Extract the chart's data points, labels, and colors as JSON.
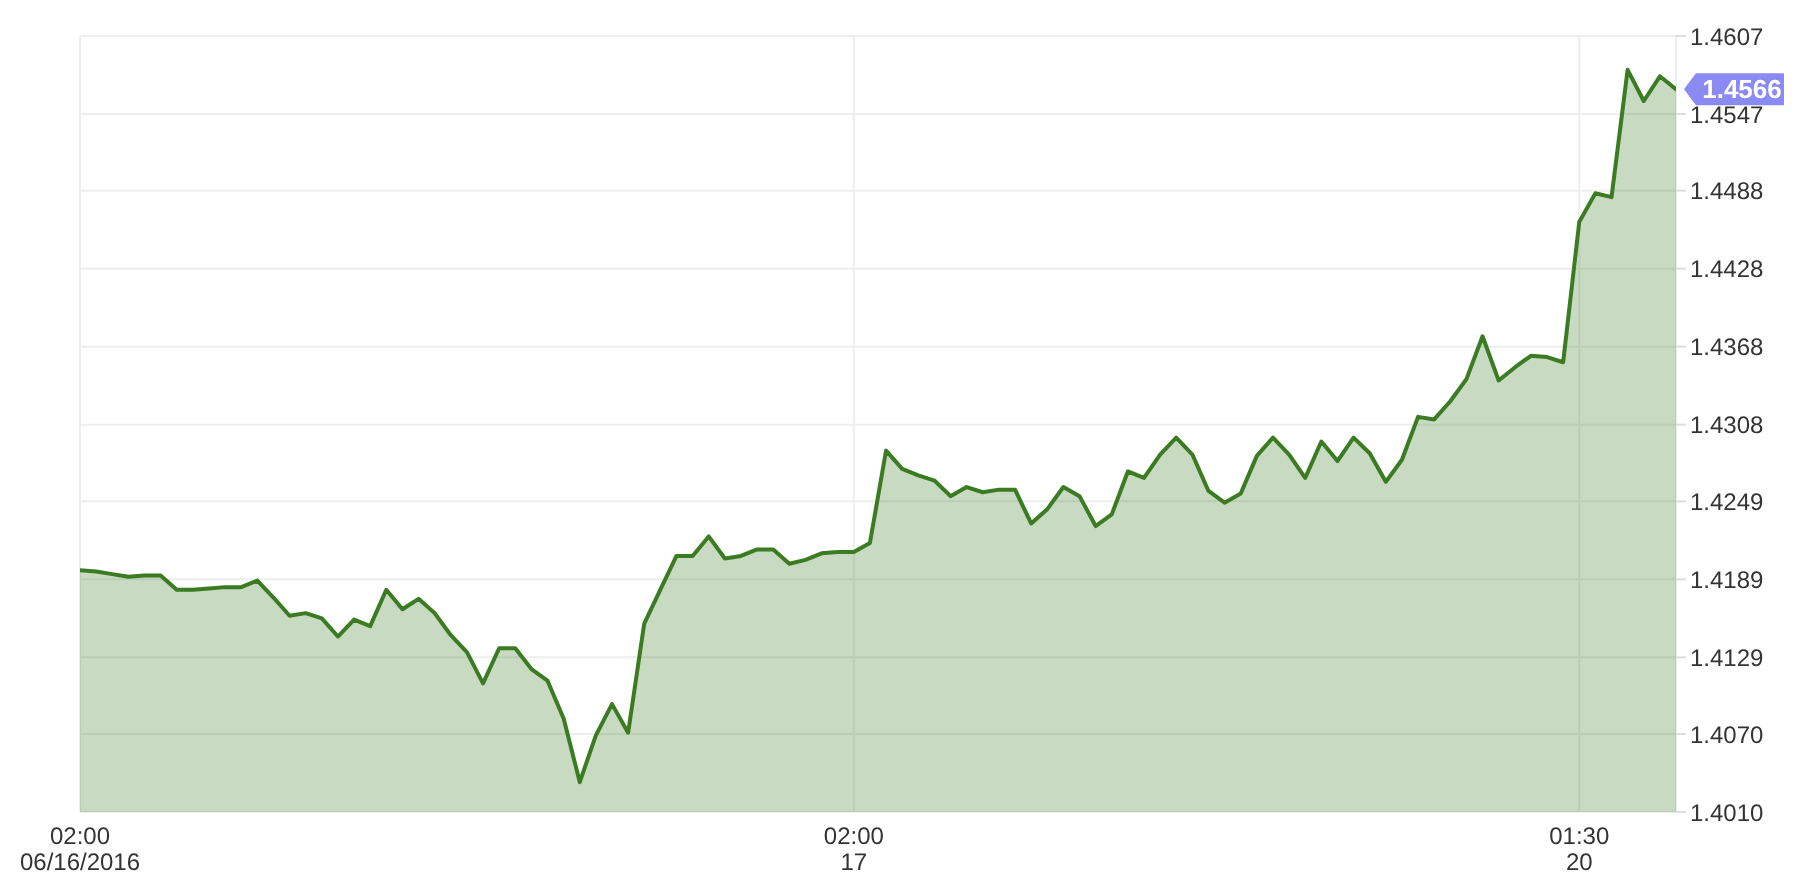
{
  "chart_data": {
    "type": "area",
    "categories": [
      "02:00\n06/16/2016",
      null,
      null,
      null,
      null,
      null,
      null,
      null,
      null,
      null,
      null,
      null,
      null,
      null,
      null,
      null,
      null,
      null,
      null,
      null,
      null,
      null,
      null,
      null,
      null,
      null,
      null,
      null,
      null,
      null,
      null,
      null,
      null,
      null,
      null,
      null,
      null,
      null,
      null,
      null,
      null,
      null,
      null,
      null,
      null,
      null,
      null,
      null,
      "02:00\n17",
      null,
      null,
      null,
      null,
      null,
      null,
      null,
      null,
      null,
      null,
      null,
      null,
      null,
      null,
      null,
      null,
      null,
      null,
      null,
      null,
      null,
      null,
      null,
      null,
      null,
      null,
      null,
      null,
      null,
      null,
      null,
      null,
      null,
      null,
      null,
      null,
      null,
      null,
      null,
      null,
      null,
      null,
      null,
      null,
      "01:30\n20",
      null,
      null,
      null,
      null,
      null,
      null
    ],
    "series": [
      {
        "color": "#3b7b22",
        "values": [
          1.4196,
          1.4195,
          1.4193,
          1.4191,
          1.4192,
          1.4192,
          1.4181,
          1.4181,
          1.4182,
          1.4183,
          1.4183,
          1.4188,
          1.4175,
          1.4161,
          1.4163,
          1.4159,
          1.4145,
          1.4158,
          1.4153,
          1.4181,
          1.4166,
          1.4174,
          1.4163,
          1.4146,
          1.4133,
          1.4109,
          1.4136,
          1.4136,
          1.412,
          1.4111,
          1.4082,
          1.4033,
          1.4069,
          1.4093,
          1.4071,
          1.4155,
          1.4181,
          1.4207,
          1.4207,
          1.4222,
          1.4205,
          1.4207,
          1.4212,
          1.4212,
          1.4201,
          1.4204,
          1.4209,
          1.421,
          1.421,
          1.4217,
          1.4288,
          1.4274,
          1.4269,
          1.4265,
          1.4253,
          1.426,
          1.4256,
          1.4258,
          1.4258,
          1.4232,
          1.4243,
          1.426,
          1.4253,
          1.423,
          1.4239,
          1.4272,
          1.4267,
          1.4285,
          1.4298,
          1.4285,
          1.4257,
          1.4248,
          1.4255,
          1.4284,
          1.4298,
          1.4285,
          1.4267,
          1.4295,
          1.428,
          1.4298,
          1.4286,
          1.4264,
          1.4281,
          1.4314,
          1.4312,
          1.4326,
          1.4343,
          1.4376,
          1.4342,
          1.4352,
          1.4361,
          1.436,
          1.4356,
          1.4464,
          1.4486,
          1.4483,
          1.4581,
          1.4557,
          1.4576,
          1.4566
        ]
      }
    ],
    "ylim": [
      1.401,
      1.4607
    ],
    "yticks": [
      {
        "value": 1.401,
        "label": "1.4010"
      },
      {
        "value": 1.407,
        "label": "1.4070"
      },
      1.4129,
      1.4189,
      1.4249,
      1.4308,
      1.4368,
      1.4428,
      1.4488,
      1.4547,
      1.4607
    ],
    "grid": true,
    "annotations": [
      "1.4566"
    ]
  }
}
